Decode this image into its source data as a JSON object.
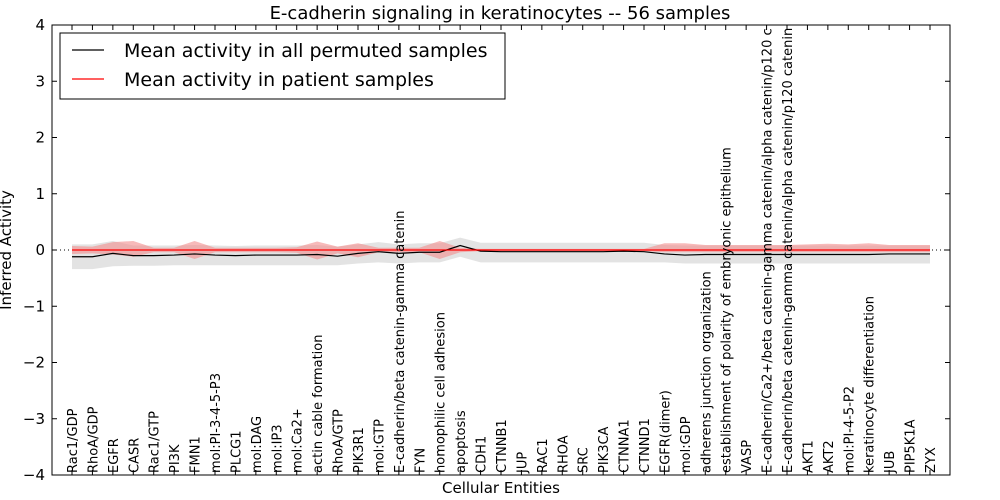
{
  "chart_data": {
    "type": "line",
    "title": "E-cadherin signaling in keratinocytes -- 56 samples",
    "xlabel": "Cellular Entities",
    "ylabel": "Inferred Activity",
    "ylim": [
      -4,
      4
    ],
    "yticks": [
      -4,
      -3,
      -2,
      -1,
      0,
      1,
      2,
      3,
      4
    ],
    "ytick_labels": [
      "−4",
      "−3",
      "−2",
      "−1",
      "0",
      "1",
      "2",
      "3",
      "4"
    ],
    "legend_position": "top-left",
    "colors": {
      "permuted_line": "#000000",
      "permuted_band": "#c8c8c8",
      "patient_line": "#ff0000",
      "patient_band": "#f28c8c"
    },
    "categories": [
      "Rac1/GDP",
      "RhoA/GDP",
      "EGFR",
      "CASR",
      "Rac1/GTP",
      "PI3K",
      "FMN1",
      "mol:PI-3-4-5-P3",
      "PLCG1",
      "mol:DAG",
      "mol:IP3",
      "mol:Ca2+",
      "actin cable formation",
      "RhoA/GTP",
      "PIK3R1",
      "mol:GTP",
      "E-cadherin/beta catenin-gamma catenin",
      "FYN",
      "homophilic cell adhesion",
      "apoptosis",
      "CDH1",
      "CTNNB1",
      "JUP",
      "RAC1",
      "RHOA",
      "SRC",
      "PIK3CA",
      "CTNNA1",
      "CTNND1",
      "EGFR(dimer)",
      "mol:GDP",
      "adherens junction organization",
      "establishment of polarity of embryonic epithelium",
      "VASP",
      "E-cadherin/Ca2+/beta catenin-gamma catenin/alpha catenin/p120 c",
      "E-cadherin/beta catenin-gamma catenin/alpha catenin/p120 catenin",
      "AKT1",
      "AKT2",
      "mol:PI-4-5-P2",
      "keratinocyte differentiation",
      "JUB",
      "PIP5K1A",
      "ZYX"
    ],
    "series": [
      {
        "name": "Mean activity in all permuted samples",
        "values": [
          -0.12,
          -0.12,
          -0.06,
          -0.1,
          -0.1,
          -0.09,
          -0.07,
          -0.09,
          -0.1,
          -0.09,
          -0.09,
          -0.09,
          -0.08,
          -0.11,
          -0.06,
          -0.03,
          -0.06,
          -0.04,
          -0.04,
          0.08,
          -0.02,
          -0.03,
          -0.03,
          -0.03,
          -0.03,
          -0.03,
          -0.03,
          -0.02,
          -0.03,
          -0.07,
          -0.09,
          -0.08,
          -0.08,
          -0.08,
          -0.08,
          -0.08,
          -0.08,
          -0.08,
          -0.08,
          -0.08,
          -0.07,
          -0.07,
          -0.07
        ],
        "band_low": [
          -0.34,
          -0.34,
          -0.29,
          -0.28,
          -0.28,
          -0.27,
          -0.27,
          -0.27,
          -0.27,
          -0.27,
          -0.27,
          -0.27,
          -0.27,
          -0.27,
          -0.24,
          -0.22,
          -0.24,
          -0.22,
          -0.22,
          -0.12,
          -0.22,
          -0.22,
          -0.22,
          -0.22,
          -0.22,
          -0.22,
          -0.22,
          -0.22,
          -0.22,
          -0.22,
          -0.24,
          -0.24,
          -0.24,
          -0.24,
          -0.24,
          -0.24,
          -0.24,
          -0.24,
          -0.24,
          -0.24,
          -0.24,
          -0.24,
          -0.24
        ],
        "band_high": [
          0.1,
          0.1,
          0.16,
          0.08,
          0.08,
          0.08,
          0.09,
          0.08,
          0.07,
          0.08,
          0.08,
          0.08,
          0.09,
          0.06,
          0.1,
          0.14,
          0.1,
          0.12,
          0.12,
          0.22,
          0.13,
          0.13,
          0.13,
          0.13,
          0.13,
          0.13,
          0.13,
          0.13,
          0.13,
          0.09,
          0.08,
          0.08,
          0.08,
          0.08,
          0.08,
          0.08,
          0.08,
          0.08,
          0.08,
          0.08,
          0.08,
          0.08,
          0.08
        ]
      },
      {
        "name": "Mean activity in patient samples",
        "values": [
          0.0,
          0.0,
          0.0,
          0.0,
          0.0,
          0.0,
          0.0,
          0.0,
          0.0,
          0.0,
          0.0,
          0.0,
          0.0,
          0.0,
          0.0,
          0.0,
          0.0,
          0.0,
          0.0,
          0.0,
          0.0,
          0.0,
          0.0,
          0.0,
          0.0,
          0.0,
          0.0,
          0.0,
          0.0,
          0.0,
          0.0,
          0.0,
          0.0,
          0.0,
          0.0,
          0.0,
          0.0,
          0.0,
          0.0,
          0.0,
          0.0,
          0.0,
          0.0
        ],
        "band_low": [
          -0.07,
          -0.06,
          -0.08,
          -0.12,
          -0.04,
          -0.04,
          -0.16,
          -0.04,
          -0.04,
          -0.04,
          -0.04,
          -0.05,
          -0.17,
          -0.06,
          -0.13,
          -0.04,
          -0.04,
          -0.04,
          -0.16,
          -0.04,
          -0.02,
          -0.02,
          -0.02,
          -0.02,
          -0.02,
          -0.02,
          -0.02,
          -0.02,
          -0.02,
          -0.04,
          -0.04,
          -0.04,
          -0.04,
          -0.04,
          -0.04,
          -0.04,
          -0.04,
          -0.04,
          -0.04,
          -0.04,
          -0.04,
          -0.04,
          -0.04
        ],
        "band_high": [
          0.07,
          0.06,
          0.14,
          0.16,
          0.04,
          0.04,
          0.16,
          0.04,
          0.04,
          0.04,
          0.04,
          0.05,
          0.15,
          0.06,
          0.12,
          0.04,
          0.04,
          0.04,
          0.16,
          0.04,
          0.02,
          0.02,
          0.02,
          0.02,
          0.02,
          0.02,
          0.02,
          0.02,
          0.02,
          0.12,
          0.12,
          0.09,
          0.09,
          0.09,
          0.09,
          0.09,
          0.1,
          0.11,
          0.1,
          0.12,
          0.09,
          0.09,
          0.09
        ]
      }
    ]
  }
}
